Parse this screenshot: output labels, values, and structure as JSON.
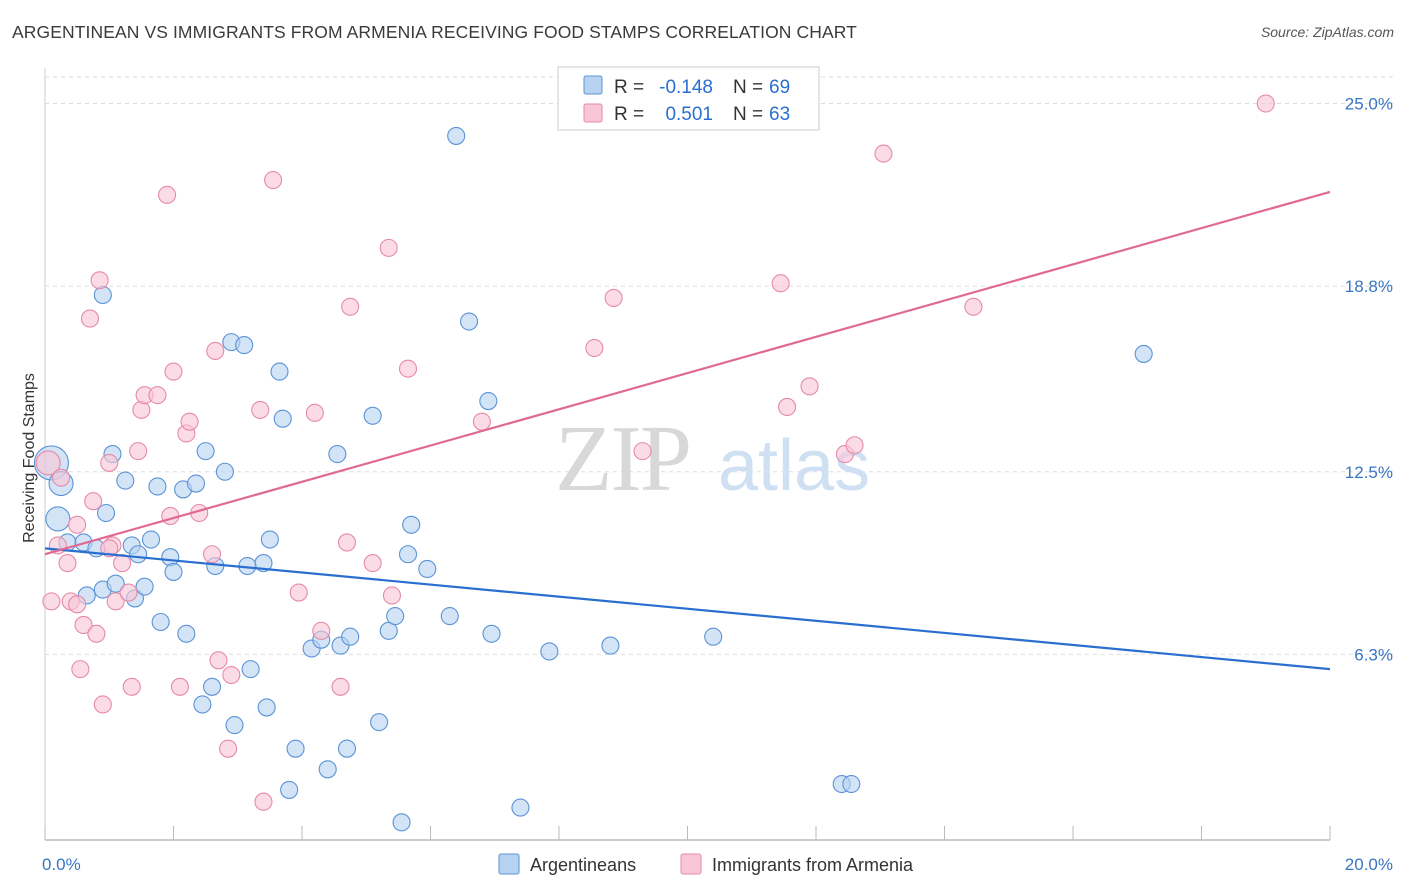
{
  "header": {
    "title": "ARGENTINEAN VS IMMIGRANTS FROM ARMENIA RECEIVING FOOD STAMPS CORRELATION CHART",
    "source": "Source: ZipAtlas.com"
  },
  "watermark": {
    "zip": "ZIP",
    "atlas": "atlas"
  },
  "colors": {
    "blue_fill": "#b8d3f2",
    "blue_stroke": "#5b93d6",
    "blue_line": "#2a6fcf",
    "pink_fill": "#f8c6d6",
    "pink_stroke": "#e68aa8",
    "pink_line": "#e06a93",
    "value_text": "#2a6fcf",
    "grid": "#dddddd"
  },
  "legend_box": {
    "rows": [
      {
        "r_label": "R =",
        "r_value": "-0.148",
        "n_label": "N =",
        "n_value": "69"
      },
      {
        "r_label": "R =",
        "r_value": "0.501",
        "n_label": "N =",
        "n_value": "63"
      }
    ]
  },
  "bottom_legend": [
    "Argentineans",
    "Immigrants from Armenia"
  ],
  "chart_data": {
    "type": "scatter",
    "ylabel": "Receiving Food Stamps",
    "xlim": [
      0,
      20
    ],
    "ylim": [
      0,
      25.9
    ],
    "x_tick_labels": [
      {
        "value": 0,
        "label": "0.0%"
      },
      {
        "value": 20,
        "label": "20.0%"
      }
    ],
    "y_ticks": [
      {
        "value": 6.3,
        "label": "6.3%"
      },
      {
        "value": 12.5,
        "label": "12.5%"
      },
      {
        "value": 18.8,
        "label": "18.8%"
      },
      {
        "value": 25.0,
        "label": "25.0%"
      }
    ],
    "x_minor_ticks": [
      0,
      2,
      4,
      6,
      8,
      10,
      12,
      14,
      16,
      18,
      20
    ],
    "grid": true,
    "legend_position": "top-center",
    "series": [
      {
        "name": "Argentineans",
        "color": "blue",
        "r": -0.148,
        "n": 69,
        "trend": {
          "x": [
            0,
            20
          ],
          "y": [
            9.9,
            5.8
          ]
        },
        "points": [
          [
            0.1,
            12.8,
            "large"
          ],
          [
            0.25,
            12.1,
            "mid"
          ],
          [
            0.2,
            10.9,
            "mid"
          ],
          [
            0.35,
            10.1
          ],
          [
            0.6,
            10.1
          ],
          [
            0.8,
            9.9
          ],
          [
            0.65,
            8.3
          ],
          [
            0.9,
            8.5
          ],
          [
            0.95,
            11.1
          ],
          [
            1.05,
            13.1
          ],
          [
            1.1,
            8.7
          ],
          [
            1.25,
            12.2
          ],
          [
            1.35,
            10.0
          ],
          [
            1.4,
            8.2
          ],
          [
            1.55,
            8.6
          ],
          [
            1.65,
            10.2
          ],
          [
            1.75,
            12.0
          ],
          [
            1.8,
            7.4
          ],
          [
            1.95,
            9.6
          ],
          [
            2.0,
            9.1
          ],
          [
            2.15,
            11.9
          ],
          [
            2.2,
            7.0
          ],
          [
            2.35,
            12.1
          ],
          [
            2.45,
            4.6
          ],
          [
            2.5,
            13.2
          ],
          [
            2.6,
            5.2
          ],
          [
            2.65,
            9.3
          ],
          [
            2.8,
            12.5
          ],
          [
            2.9,
            16.9
          ],
          [
            2.95,
            3.9
          ],
          [
            3.1,
            16.8
          ],
          [
            3.2,
            5.8
          ],
          [
            3.4,
            9.4
          ],
          [
            3.45,
            4.5
          ],
          [
            3.5,
            10.2
          ],
          [
            3.7,
            14.3
          ],
          [
            3.8,
            1.7
          ],
          [
            3.65,
            15.9
          ],
          [
            3.9,
            3.1
          ],
          [
            4.15,
            6.5
          ],
          [
            4.3,
            6.8
          ],
          [
            4.4,
            2.4
          ],
          [
            4.55,
            13.1
          ],
          [
            4.6,
            6.6
          ],
          [
            4.7,
            3.1
          ],
          [
            4.75,
            6.9
          ],
          [
            5.1,
            14.4
          ],
          [
            5.2,
            4.0
          ],
          [
            5.35,
            7.1
          ],
          [
            5.55,
            0.6
          ],
          [
            5.45,
            7.6
          ],
          [
            5.65,
            9.7
          ],
          [
            5.7,
            10.7
          ],
          [
            5.95,
            9.2
          ],
          [
            6.3,
            7.6
          ],
          [
            6.4,
            23.9
          ],
          [
            6.6,
            17.6
          ],
          [
            6.9,
            14.9
          ],
          [
            6.95,
            7.0
          ],
          [
            7.4,
            1.1
          ],
          [
            7.85,
            6.4
          ],
          [
            8.8,
            6.6
          ],
          [
            10.4,
            6.9
          ],
          [
            0.9,
            18.5
          ],
          [
            12.4,
            1.9
          ],
          [
            12.55,
            1.9
          ],
          [
            17.1,
            16.5
          ],
          [
            3.15,
            9.3
          ],
          [
            1.45,
            9.7
          ]
        ]
      },
      {
        "name": "Immigrants from Armenia",
        "color": "pink",
        "r": 0.501,
        "n": 63,
        "trend": {
          "x": [
            0,
            20
          ],
          "y": [
            9.7,
            22.0
          ]
        },
        "points": [
          [
            0.05,
            12.8,
            "mid"
          ],
          [
            0.1,
            8.1
          ],
          [
            0.2,
            10.0
          ],
          [
            0.25,
            12.3
          ],
          [
            0.35,
            9.4
          ],
          [
            0.4,
            8.1
          ],
          [
            0.5,
            8.0
          ],
          [
            0.5,
            10.7
          ],
          [
            0.55,
            5.8
          ],
          [
            0.6,
            7.3
          ],
          [
            0.7,
            17.7
          ],
          [
            0.75,
            11.5
          ],
          [
            0.8,
            7.0
          ],
          [
            0.85,
            19.0
          ],
          [
            0.9,
            4.6
          ],
          [
            1.0,
            12.8
          ],
          [
            1.05,
            10.0
          ],
          [
            1.1,
            8.1
          ],
          [
            1.2,
            9.4
          ],
          [
            1.3,
            8.4
          ],
          [
            1.35,
            5.2
          ],
          [
            1.45,
            13.2
          ],
          [
            1.5,
            14.6
          ],
          [
            1.55,
            15.1
          ],
          [
            1.75,
            15.1
          ],
          [
            1.9,
            21.9
          ],
          [
            1.95,
            11.0
          ],
          [
            2.0,
            15.9
          ],
          [
            2.1,
            5.2
          ],
          [
            2.2,
            13.8
          ],
          [
            2.25,
            14.2
          ],
          [
            2.4,
            11.1
          ],
          [
            2.6,
            9.7
          ],
          [
            2.65,
            16.6
          ],
          [
            2.7,
            6.1
          ],
          [
            2.85,
            3.1
          ],
          [
            2.9,
            5.6
          ],
          [
            3.35,
            14.6
          ],
          [
            3.4,
            1.3
          ],
          [
            3.55,
            22.4
          ],
          [
            3.95,
            8.4
          ],
          [
            4.2,
            14.5
          ],
          [
            4.3,
            7.1
          ],
          [
            4.6,
            5.2
          ],
          [
            4.7,
            10.1
          ],
          [
            4.75,
            18.1
          ],
          [
            5.1,
            9.4
          ],
          [
            5.35,
            20.1
          ],
          [
            5.4,
            8.3
          ],
          [
            5.65,
            16.0
          ],
          [
            6.8,
            14.2
          ],
          [
            8.55,
            16.7
          ],
          [
            8.85,
            18.4
          ],
          [
            9.3,
            13.2
          ],
          [
            11.45,
            18.9
          ],
          [
            11.55,
            14.7
          ],
          [
            11.9,
            15.4
          ],
          [
            12.45,
            13.1
          ],
          [
            12.6,
            13.4
          ],
          [
            13.05,
            23.3
          ],
          [
            14.45,
            18.1
          ],
          [
            19.0,
            25.0
          ],
          [
            1.0,
            9.9
          ]
        ]
      }
    ]
  }
}
